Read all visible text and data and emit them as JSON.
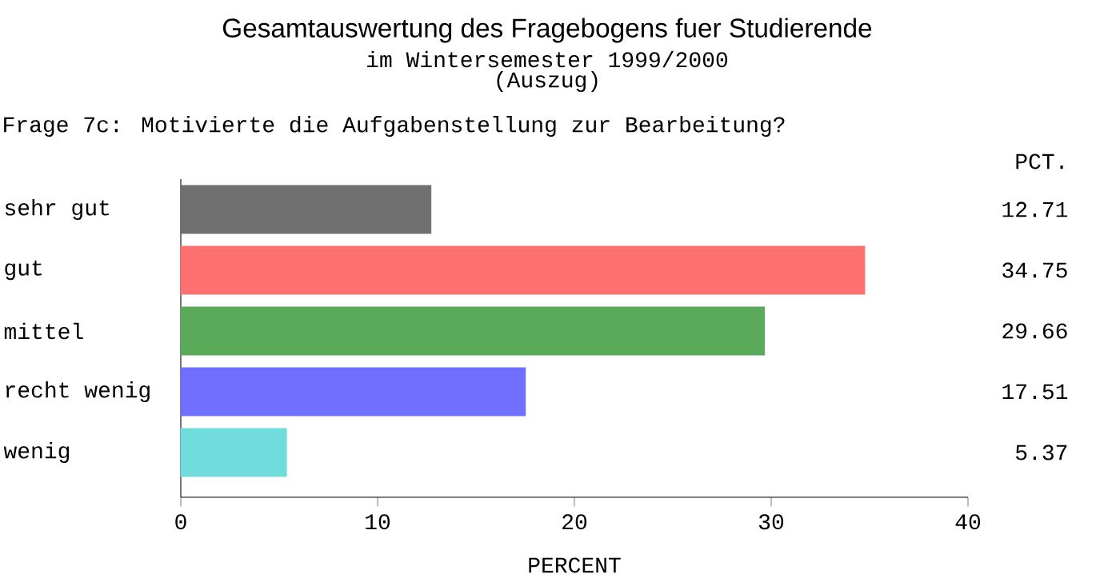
{
  "chart_data": {
    "type": "bar",
    "orientation": "horizontal",
    "title": "Gesamtauswertung des Fragebogens fuer Studierende",
    "subtitle": "im Wintersemester 1999/2000",
    "annotations": [
      "(Auszug)",
      "Frage 7c: Motivierte die Aufgabenstellung zur Bearbeitung?",
      "PCT."
    ],
    "categories": [
      "sehr gut",
      "gut",
      "mittel",
      "recht wenig",
      "wenig"
    ],
    "values": [
      12.71,
      34.75,
      29.66,
      17.51,
      5.37
    ],
    "value_labels": [
      "12.71",
      "34.75",
      "29.66",
      "17.51",
      "5.37"
    ],
    "colors": [
      "#707070",
      "#ff7070",
      "#5aaa5a",
      "#7070ff",
      "#70dcdc"
    ],
    "xlabel": "PERCENT",
    "xlim": [
      0,
      40
    ],
    "xticks": [
      0,
      10,
      20,
      30,
      40
    ]
  }
}
